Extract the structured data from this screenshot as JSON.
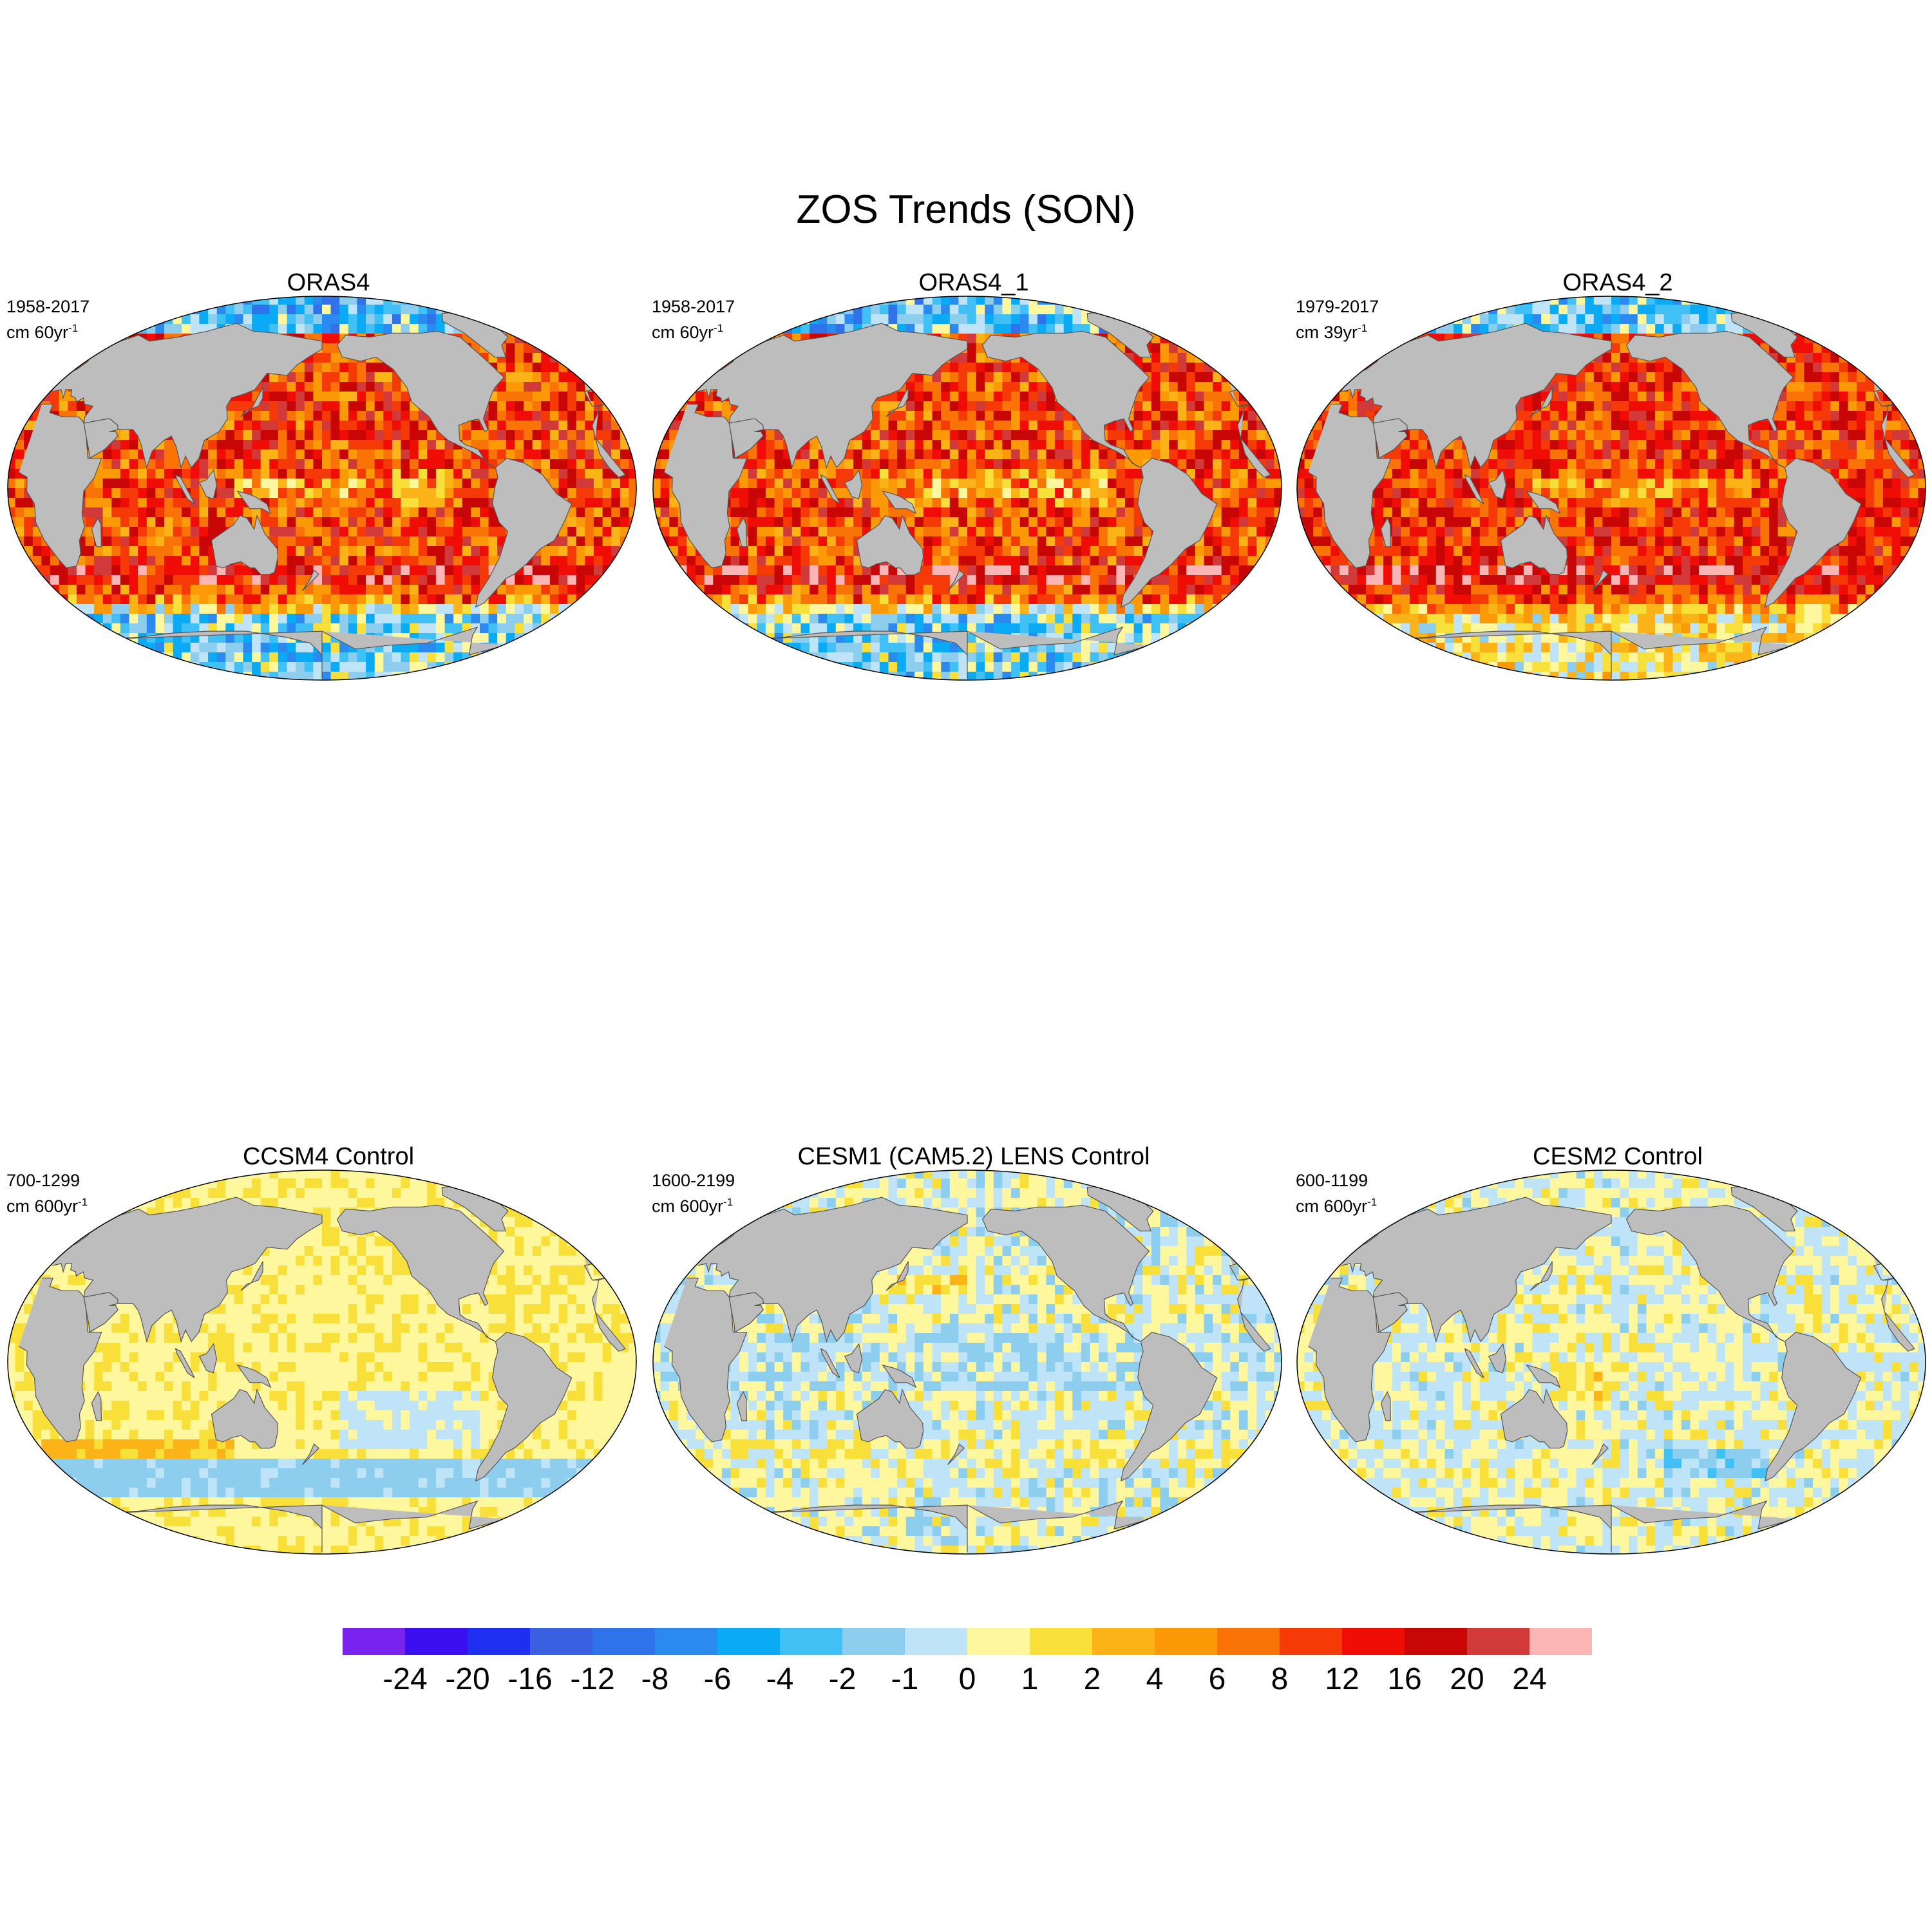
{
  "title": "ZOS Trends (SON)",
  "panels": [
    {
      "title": "ORAS4",
      "period": "1958-2017",
      "units_prefix": "cm 60yr",
      "units_exp": "-1",
      "style": "warm"
    },
    {
      "title": "ORAS4_1",
      "period": "1958-2017",
      "units_prefix": "cm 60yr",
      "units_exp": "-1",
      "style": "warm"
    },
    {
      "title": "ORAS4_2",
      "period": "1979-2017",
      "units_prefix": "cm 39yr",
      "units_exp": "-1",
      "style": "warm2"
    },
    {
      "title": "CCSM4 Control",
      "period": "700-1299",
      "units_prefix": "cm 600yr",
      "units_exp": "-1",
      "style": "mild"
    },
    {
      "title": "CESM1 (CAM5.2) LENS Control",
      "period": "1600-2199",
      "units_prefix": "cm 600yr",
      "units_exp": "-1",
      "style": "cool"
    },
    {
      "title": "CESM2 Control",
      "period": "600-1199",
      "units_prefix": "cm 600yr",
      "units_exp": "-1",
      "style": "cool2"
    }
  ],
  "colorbar": {
    "labels": [
      "-24",
      "-20",
      "-16",
      "-12",
      "-8",
      "-6",
      "-4",
      "-2",
      "-1",
      "0",
      "1",
      "2",
      "4",
      "6",
      "8",
      "12",
      "16",
      "20",
      "24"
    ],
    "colors": [
      "#7a22ee",
      "#3b10f0",
      "#1e2ff0",
      "#3a5fe0",
      "#2f72ea",
      "#2b8af0",
      "#0aaaf5",
      "#40c0f5",
      "#8dcdee",
      "#bfe4f7",
      "#fff79e",
      "#f9df3a",
      "#fbb318",
      "#fb9a06",
      "#f97306",
      "#f53a08",
      "#ef0d06",
      "#c80605",
      "#d23a3a",
      "#fbb5b5"
    ]
  },
  "colors": {
    "land": "#bdbdbd",
    "map_outline": "#000000",
    "ice": "#ffffff"
  }
}
